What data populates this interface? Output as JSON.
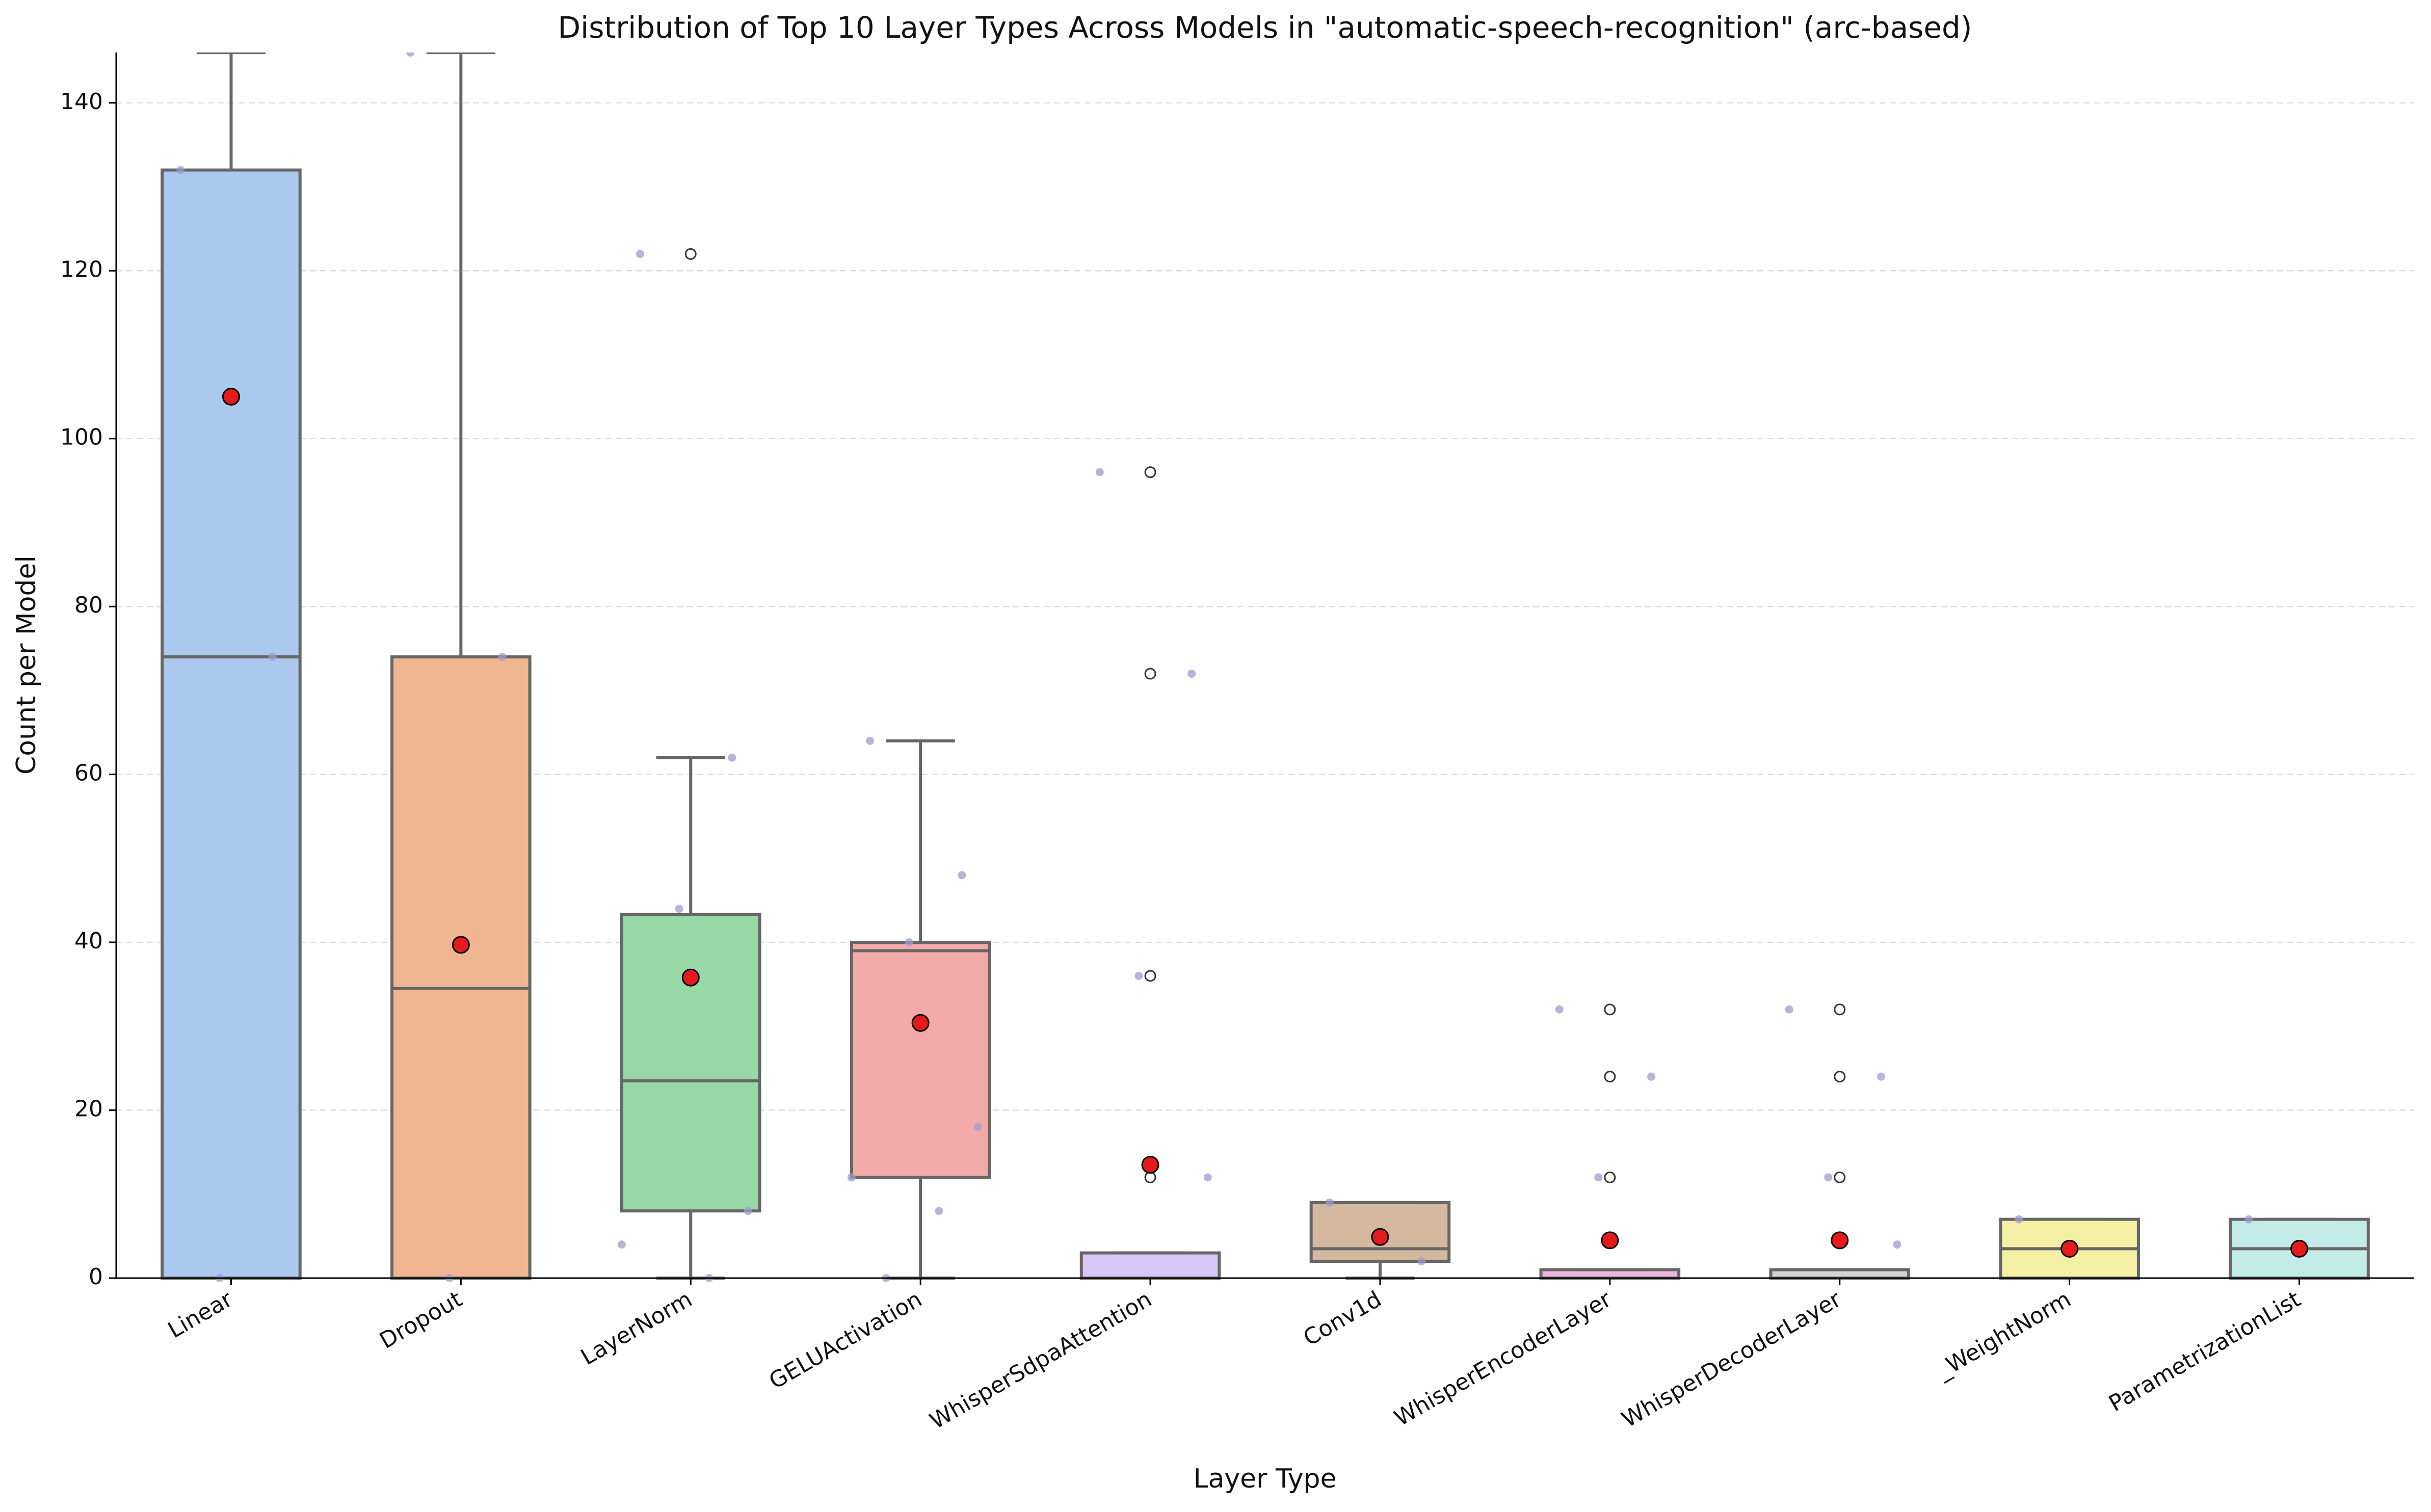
{
  "chart_data": {
    "type": "box",
    "title": "Distribution of Top 10 Layer Types Across Models in \"automatic-speech-recognition\" (arc-based)",
    "x_label": "Layer Type",
    "y_label": "Count per Model",
    "categories": [
      "Linear",
      "Dropout",
      "LayerNorm",
      "GELUActivation",
      "WhisperSdpaAttention",
      "Conv1d",
      "WhisperEncoderLayer",
      "WhisperDecoderLayer",
      "_WeightNorm",
      "ParametrizationList"
    ],
    "boxes": [
      {
        "q1": 0,
        "median": 74,
        "q3": 132,
        "whislo": 0,
        "whishi": 146,
        "mean": 105,
        "fliers": [],
        "points": [
          132,
          74,
          0
        ],
        "color": "#abc8ee"
      },
      {
        "q1": 0,
        "median": 34.5,
        "q3": 74,
        "whislo": 0,
        "whishi": 146,
        "mean": 39.7,
        "fliers": [],
        "points": [
          146,
          74,
          0
        ],
        "color": "#f0b692"
      },
      {
        "q1": 8,
        "median": 23.5,
        "q3": 43.3,
        "whislo": 0,
        "whishi": 62,
        "mean": 35.8,
        "fliers": [
          122
        ],
        "points": [
          122,
          62,
          44,
          8,
          4,
          0
        ],
        "color": "#98d8a6"
      },
      {
        "q1": 12,
        "median": 39,
        "q3": 40,
        "whislo": 0,
        "whishi": 64,
        "mean": 30.4,
        "fliers": [],
        "points": [
          64,
          48,
          40,
          18,
          12,
          8,
          0
        ],
        "color": "#f2aaa8"
      },
      {
        "q1": 0,
        "median": 0,
        "q3": 3,
        "whislo": 0,
        "whishi": 3,
        "mean": 13.5,
        "fliers": [
          96,
          72,
          36,
          12
        ],
        "points": [
          96,
          72,
          36,
          12
        ],
        "color": "#d7c6f6"
      },
      {
        "q1": 2,
        "median": 3.5,
        "q3": 9,
        "whislo": 0,
        "whishi": 9,
        "mean": 4.9,
        "fliers": [],
        "points": [
          9,
          2
        ],
        "color": "#d5b8a0"
      },
      {
        "q1": 0,
        "median": 0,
        "q3": 1,
        "whislo": 0,
        "whishi": 1,
        "mean": 4.5,
        "fliers": [
          32,
          24,
          12
        ],
        "points": [
          32,
          24,
          12
        ],
        "color": "#eeb5df"
      },
      {
        "q1": 0,
        "median": 0,
        "q3": 1,
        "whislo": 0,
        "whishi": 1,
        "mean": 4.5,
        "fliers": [
          32,
          24,
          12
        ],
        "points": [
          32,
          24,
          12,
          4
        ],
        "color": "#d3d3d3"
      },
      {
        "q1": 0,
        "median": 3.5,
        "q3": 7,
        "whislo": 0,
        "whishi": 7,
        "mean": 3.5,
        "fliers": [],
        "points": [
          7
        ],
        "color": "#f4f0a3"
      },
      {
        "q1": 0,
        "median": 3.5,
        "q3": 7,
        "whislo": 0,
        "whishi": 7,
        "mean": 3.5,
        "fliers": [],
        "points": [
          7
        ],
        "color": "#c3ebe7"
      }
    ],
    "ylim": [
      0,
      146
    ],
    "yticks": [
      0,
      20,
      40,
      60,
      80,
      100,
      120,
      140
    ],
    "grid": true
  }
}
